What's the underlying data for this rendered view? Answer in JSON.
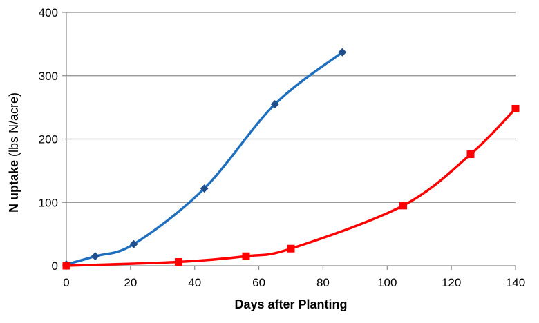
{
  "chart_data": {
    "type": "line",
    "title": "",
    "xlabel": "Days after Planting",
    "ylabel_bold": "N uptake",
    "ylabel_unit": " (lbs N/acre)",
    "xlim": [
      0,
      140
    ],
    "ylim": [
      0,
      400
    ],
    "x_ticks": [
      0,
      20,
      40,
      60,
      80,
      100,
      120,
      140
    ],
    "y_ticks": [
      0,
      100,
      200,
      300,
      400
    ],
    "x_tick_labels": [
      "0",
      "20",
      "40",
      "60",
      "80",
      "100",
      "120",
      "140"
    ],
    "y_tick_labels": [
      "0",
      "100",
      "200",
      "300",
      "400"
    ],
    "grid": "horizontal",
    "legend": "none",
    "series": [
      {
        "marker": "diamond",
        "color": "#1f6fbf",
        "marker_color": "#1f4e8c",
        "points": [
          [
            0,
            2
          ],
          [
            9,
            15
          ],
          [
            21,
            34
          ],
          [
            43,
            122
          ],
          [
            65,
            255
          ],
          [
            86,
            337
          ]
        ]
      },
      {
        "marker": "square",
        "color": "#ff0000",
        "marker_color": "#ff0000",
        "points": [
          [
            0,
            0
          ],
          [
            35,
            6
          ],
          [
            56,
            15
          ],
          [
            70,
            27
          ],
          [
            105,
            95
          ],
          [
            126,
            176
          ],
          [
            140,
            248
          ]
        ]
      }
    ]
  }
}
